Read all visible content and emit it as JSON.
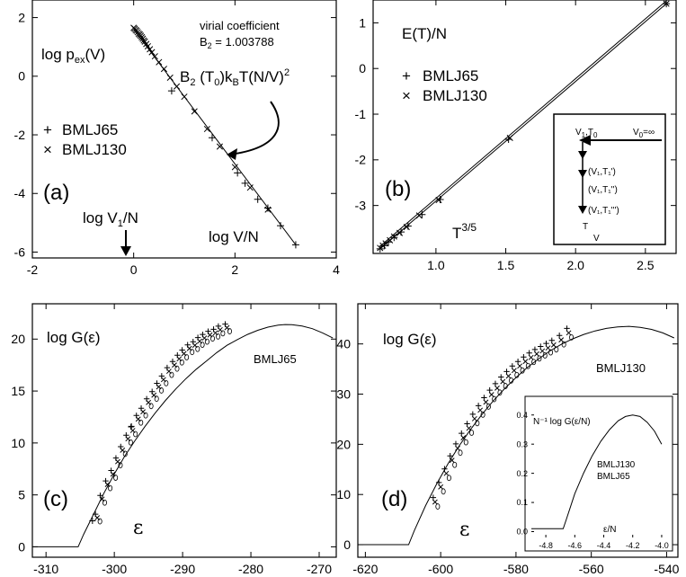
{
  "panels": {
    "a": {
      "panel_label": "(a)",
      "ylabel_main": "log p",
      "ylabel_sub": "ex",
      "ylabel_tail": "(V)",
      "annotation_title": "virial coefficient",
      "annotation_value_main": "B",
      "annotation_value_sub": "2",
      "annotation_value_tail": " = 1.003788",
      "formula_main": "B",
      "formula_sub1": "2",
      "formula_mid": " (T",
      "formula_sub2": "0",
      "formula_mid2": ")k",
      "formula_sub3": "B",
      "formula_tail": "T(N/V)",
      "formula_sup": "2",
      "arrow_label_main": "log V",
      "arrow_label_sub": "1",
      "arrow_label_tail": "/N",
      "xlabel": "log V/N",
      "legend": [
        "BMLJ65",
        "BMLJ130"
      ]
    },
    "b": {
      "panel_label": "(b)",
      "ylabel": "E(T)/N",
      "xlabel_main": "T",
      "xlabel_sup": "3/5",
      "legend": [
        "BMLJ65",
        "BMLJ130"
      ],
      "inset": {
        "top_left_main": "V",
        "top_left_sub": "1",
        "top_left_mid": ",T",
        "top_left_sub2": "0",
        "top_right_main": "V",
        "top_right_sub": "0",
        "top_right_tail": "=∞",
        "step1": "(V₁,T₁')",
        "step2": "(V₁,T₁'')",
        "step3": "(V₁,T₁''')",
        "axis_t": "T",
        "axis_v": "V"
      }
    },
    "c": {
      "panel_label": "(c)",
      "ylabel": "log G(ε)",
      "series_label": "BMLJ65",
      "xlabel": "ε"
    },
    "d": {
      "panel_label": "(d)",
      "ylabel": "log G(ε)",
      "series_label": "BMLJ130",
      "xlabel": "ε",
      "inset": {
        "ylabel": "N⁻¹ log G(ε/N)",
        "series_labels": [
          "BMLJ130",
          "BMLJ65"
        ],
        "xlabel": "ε/N"
      }
    }
  },
  "chart_data": [
    {
      "id": "a",
      "type": "scatter",
      "xlim": [
        -2,
        4
      ],
      "ylim": [
        -6.2,
        2.6
      ],
      "xticks": [
        -2,
        0,
        2,
        4
      ],
      "yticks": [
        2,
        0,
        -2,
        -4,
        -6
      ],
      "line": {
        "x": [
          0,
          3.2
        ],
        "y": [
          1.6,
          -5.75
        ]
      },
      "series": [
        {
          "name": "BMLJ65",
          "marker": "+",
          "x": [
            2.05,
            2.2,
            2.45,
            2.65,
            2.9,
            3.2,
            1.55,
            0.75
          ],
          "y": [
            -3.3,
            -3.65,
            -4.2,
            -4.5,
            -5.1,
            -5.75,
            -2.1,
            -0.5
          ]
        },
        {
          "name": "BMLJ130",
          "marker": "x",
          "x": [
            0,
            0.02,
            0.04,
            0.06,
            0.08,
            0.1,
            0.12,
            0.14,
            0.16,
            0.18,
            0.2,
            0.22,
            0.25,
            0.28,
            0.32,
            0.36,
            0.42,
            0.5,
            0.6,
            0.72,
            0.85,
            1.0,
            1.2,
            1.45,
            1.7,
            2.0,
            2.3,
            2.65
          ],
          "y": [
            1.65,
            1.62,
            1.58,
            1.55,
            1.5,
            1.45,
            1.42,
            1.38,
            1.33,
            1.28,
            1.22,
            1.18,
            1.1,
            1.02,
            0.92,
            0.82,
            0.68,
            0.48,
            0.25,
            -0.05,
            -0.35,
            -0.7,
            -1.2,
            -1.8,
            -2.4,
            -3.1,
            -3.8,
            -4.55
          ]
        }
      ]
    },
    {
      "id": "b",
      "type": "scatter",
      "xlim": [
        0.55,
        2.72
      ],
      "ylim": [
        -4.05,
        1.5
      ],
      "xticks": [
        1.0,
        1.5,
        2.0,
        2.5
      ],
      "yticks": [
        1,
        0,
        -1,
        -2,
        -3
      ],
      "line": {
        "x": [
          0.6,
          2.65
        ],
        "y": [
          -3.95,
          1.42
        ]
      },
      "series": [
        {
          "name": "BMLJ65",
          "marker": "+",
          "x": [
            0.6,
            0.63,
            0.66,
            0.7,
            0.75,
            0.8,
            0.9,
            1.03,
            1.52,
            2.65
          ],
          "y": [
            -3.95,
            -3.88,
            -3.8,
            -3.7,
            -3.58,
            -3.45,
            -3.2,
            -2.87,
            -1.55,
            1.42
          ]
        },
        {
          "name": "BMLJ130",
          "marker": "x",
          "x": [
            0.6,
            0.62,
            0.64,
            0.67,
            0.7,
            0.74,
            0.79,
            0.88,
            1.02,
            1.53,
            2.65
          ],
          "y": [
            -3.93,
            -3.88,
            -3.83,
            -3.76,
            -3.68,
            -3.6,
            -3.47,
            -3.22,
            -2.88,
            -1.52,
            1.42
          ]
        }
      ]
    },
    {
      "id": "c",
      "type": "line",
      "xlim": [
        -312,
        -267.5
      ],
      "ylim": [
        -1,
        23.4
      ],
      "xticks": [
        -310,
        -300,
        -290,
        -280,
        -270
      ],
      "yticks": [
        0,
        5,
        10,
        15,
        20
      ],
      "curve": {
        "x": [
          -312,
          -305.3,
          -304.5,
          -303,
          -301.5,
          -300,
          -298.5,
          -297,
          -295.5,
          -294,
          -292.5,
          -291,
          -289.5,
          -288,
          -286.5,
          -285,
          -283.5,
          -282,
          -280.5,
          -279,
          -277.5,
          -276,
          -275,
          -274,
          -272.5,
          -271,
          -269.5,
          -268
        ],
        "y": [
          0,
          0,
          1.2,
          3.2,
          5.2,
          7.0,
          8.7,
          10.2,
          11.6,
          12.9,
          14.1,
          15.2,
          16.2,
          17.1,
          17.9,
          18.7,
          19.4,
          19.95,
          20.45,
          20.85,
          21.15,
          21.35,
          21.4,
          21.38,
          21.25,
          21.0,
          20.6,
          20.1
        ]
      },
      "points": {
        "x": [
          -302.5,
          -301.8,
          -301,
          -300.2,
          -299.5,
          -298.8,
          -298,
          -297.3,
          -296.5,
          -295.8,
          -295,
          -294.2,
          -293.5,
          -292.8,
          -292,
          -291.2,
          -290.5,
          -289.8,
          -289,
          -288.2,
          -287.5,
          -286.8,
          -286,
          -285.2,
          -284.5,
          -283.5
        ],
        "y": [
          2.8,
          4.6,
          6.0,
          7.0,
          8.2,
          9.3,
          10.4,
          11.2,
          12.3,
          13.0,
          13.9,
          14.6,
          15.4,
          16.1,
          16.9,
          17.5,
          18.1,
          18.6,
          19.1,
          19.4,
          19.8,
          20.1,
          20.4,
          20.6,
          20.9,
          21.1
        ]
      },
      "outliers": {
        "x": [
          -297.5,
          -303.2
        ],
        "y": [
          11.6,
          2.5
        ]
      }
    },
    {
      "id": "d",
      "type": "line",
      "xlim": [
        -622,
        -537
      ],
      "ylim": [
        -2.5,
        48
      ],
      "xticks": [
        -620,
        -600,
        -580,
        -560,
        -540
      ],
      "yticks": [
        0,
        10,
        20,
        30,
        40
      ],
      "curve": {
        "x": [
          -622,
          -608.5,
          -607,
          -604,
          -601,
          -598,
          -595,
          -592,
          -589,
          -586,
          -583,
          -580,
          -577,
          -574,
          -571,
          -568,
          -565,
          -562,
          -559,
          -556,
          -553,
          -550,
          -547,
          -544,
          -541,
          -538
        ],
        "y": [
          0,
          0,
          2.8,
          7.8,
          12.2,
          16.2,
          19.8,
          23.0,
          26.0,
          28.7,
          31.1,
          33.3,
          35.3,
          37.0,
          38.6,
          39.9,
          41.0,
          41.9,
          42.6,
          43.1,
          43.4,
          43.5,
          43.3,
          42.9,
          42.2,
          41.2
        ]
      },
      "points": {
        "x": [
          -601.5,
          -600,
          -598.5,
          -597,
          -595.5,
          -594,
          -592.5,
          -591,
          -589.5,
          -588,
          -586.5,
          -585,
          -583.5,
          -582,
          -580.5,
          -579,
          -577.5,
          -576,
          -574.5,
          -573,
          -571.5,
          -570,
          -568,
          -566
        ],
        "y": [
          8.5,
          11.5,
          14.2,
          16.8,
          19.2,
          21.3,
          23.2,
          25.1,
          26.8,
          28.4,
          29.9,
          31.2,
          32.5,
          33.6,
          34.7,
          35.6,
          36.5,
          37.3,
          38.0,
          38.6,
          39.2,
          39.8,
          40.8,
          42.2
        ]
      },
      "inset": {
        "type": "line",
        "xlim": [
          -4.9,
          -3.95
        ],
        "ylim": [
          -0.02,
          0.43
        ],
        "xticks": [
          -4.8,
          -4.6,
          -4.4,
          -4.2,
          -4.0
        ],
        "yticks": [
          0.0,
          0.1,
          0.2,
          0.3,
          0.4
        ],
        "curve": {
          "x": [
            -4.9,
            -4.68,
            -4.66,
            -4.6,
            -4.54,
            -4.48,
            -4.42,
            -4.36,
            -4.3,
            -4.25,
            -4.2,
            -4.15,
            -4.1,
            -4.05,
            -4.0
          ],
          "y": [
            0.01,
            0.01,
            0.04,
            0.13,
            0.2,
            0.26,
            0.31,
            0.35,
            0.38,
            0.395,
            0.4,
            0.395,
            0.375,
            0.345,
            0.3
          ]
        }
      }
    }
  ]
}
